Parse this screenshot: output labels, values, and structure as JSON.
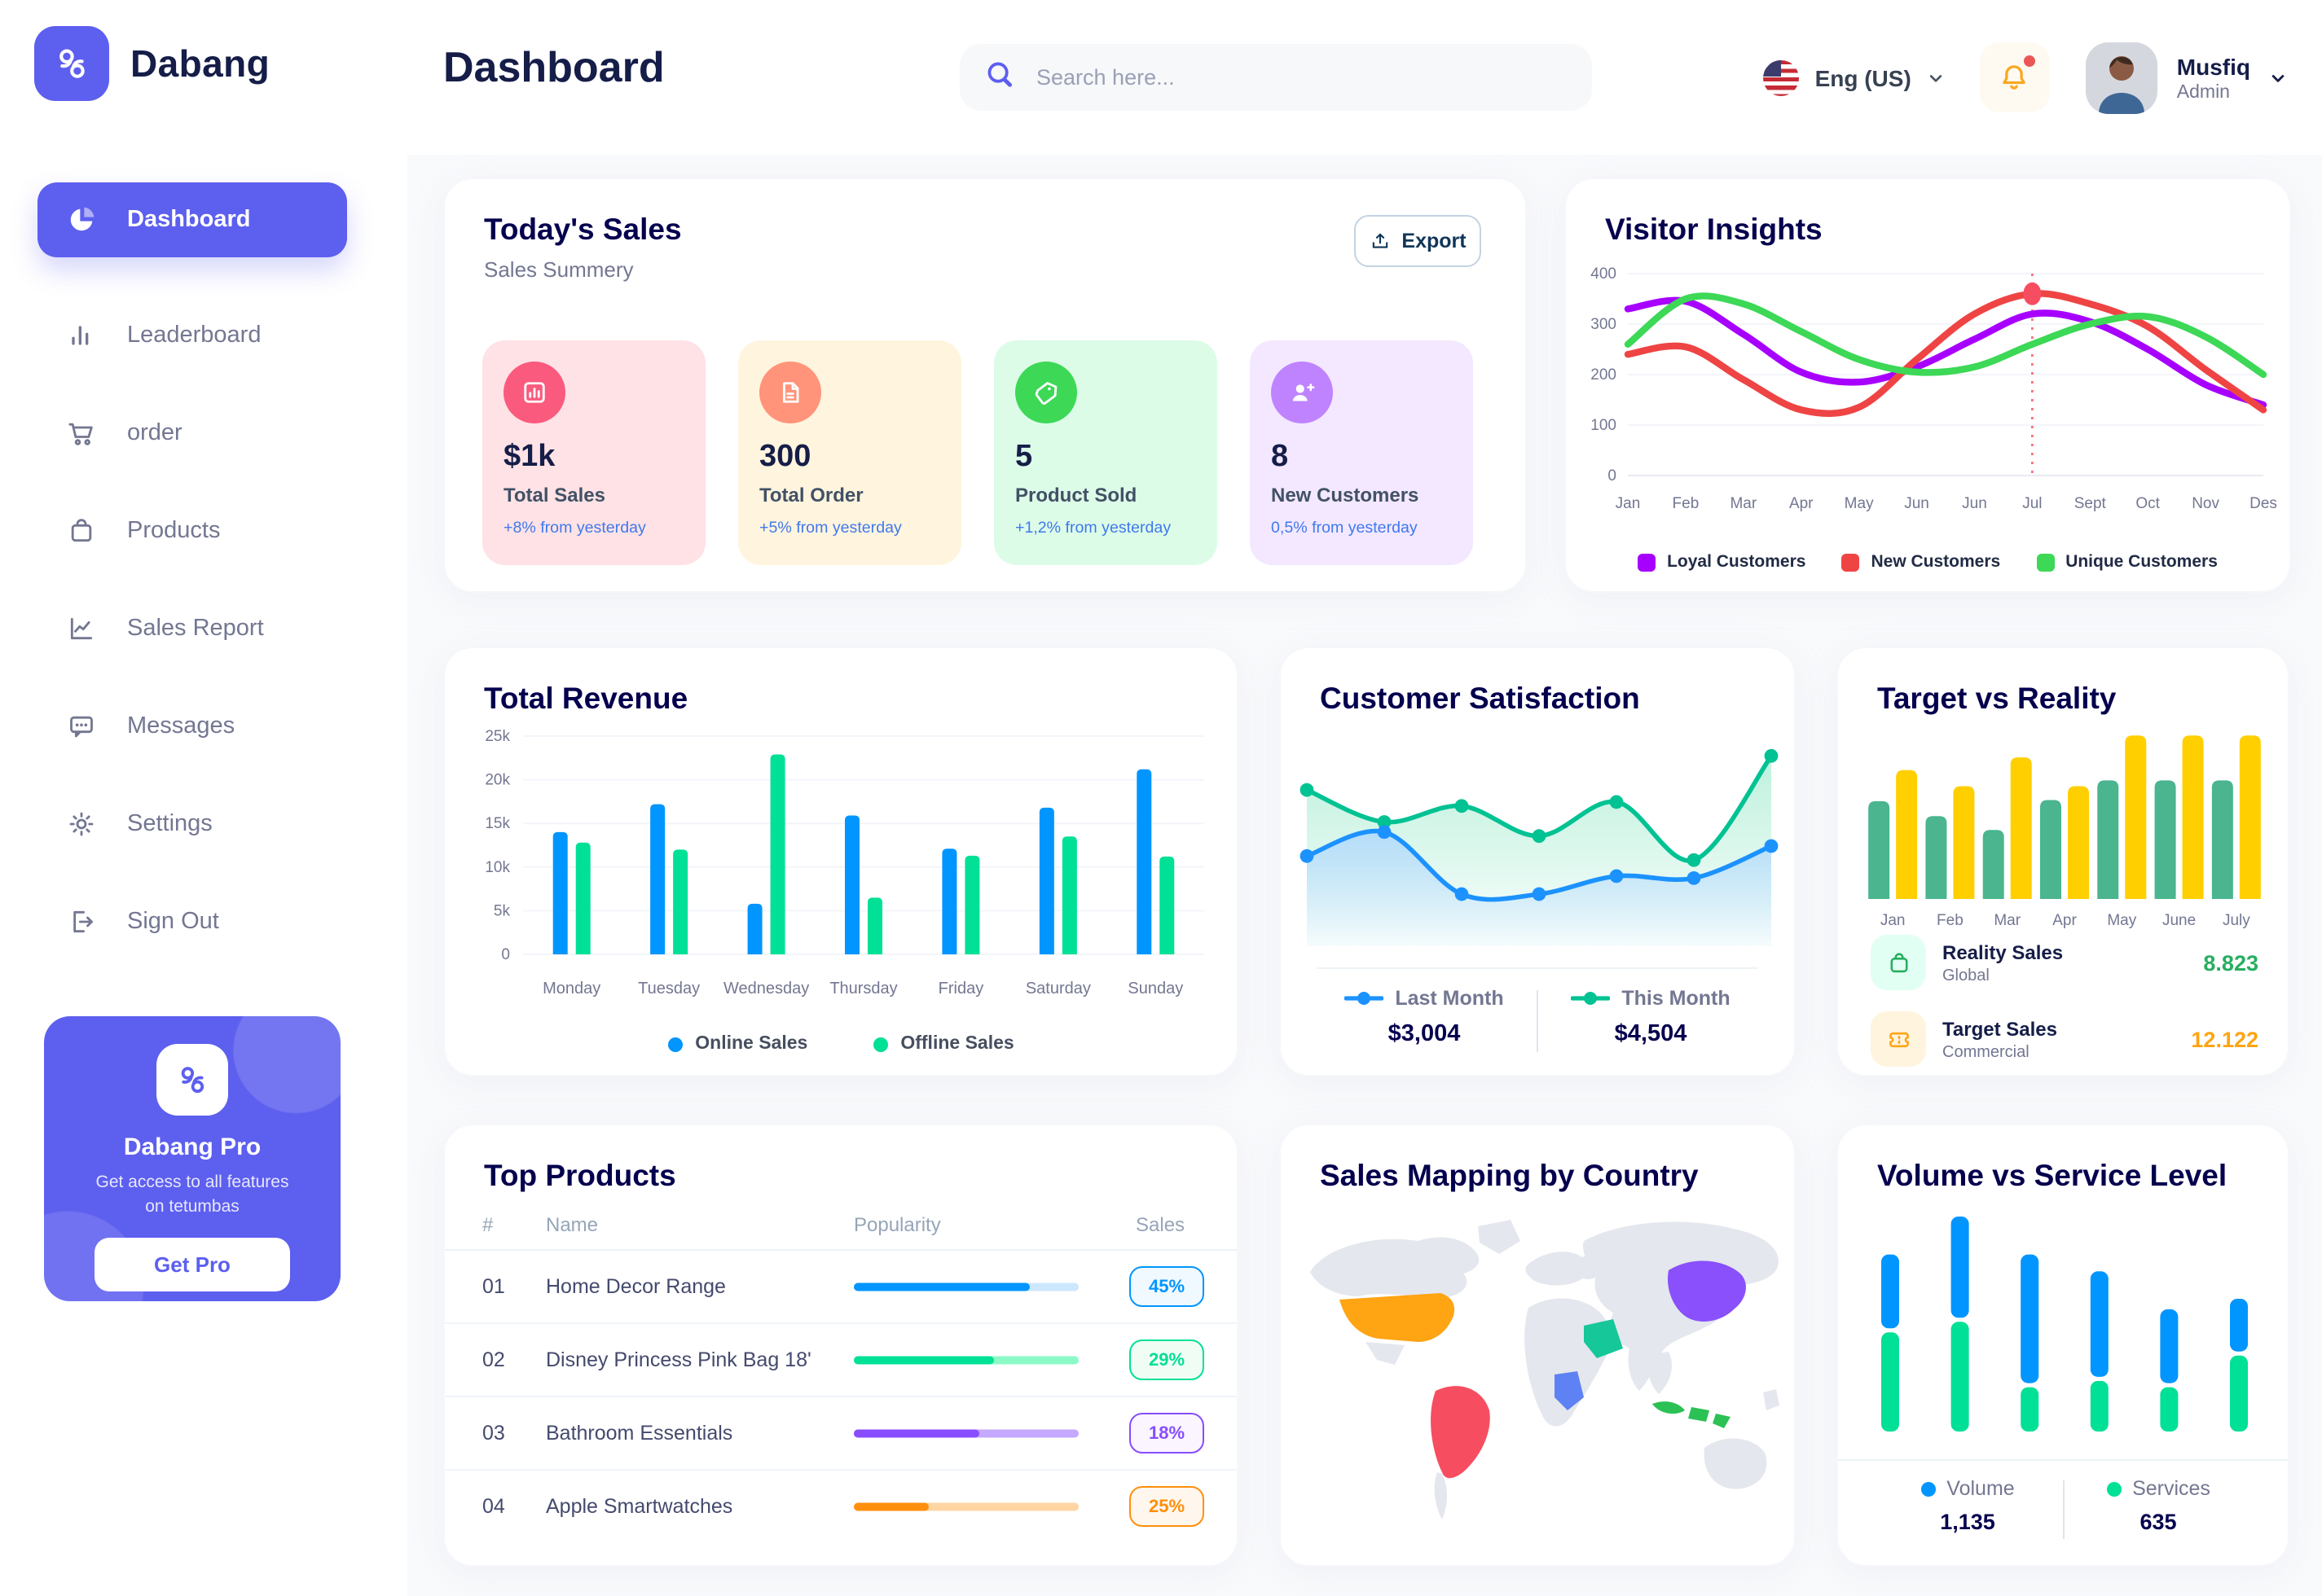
{
  "app": {
    "brand": "Dabang"
  },
  "sidebar": {
    "items": [
      {
        "label": "Dashboard",
        "icon": "pie-chart-icon",
        "active": true
      },
      {
        "label": "Leaderboard",
        "icon": "bar-chart-icon",
        "active": false
      },
      {
        "label": "order",
        "icon": "cart-icon",
        "active": false
      },
      {
        "label": "Products",
        "icon": "bag-icon",
        "active": false
      },
      {
        "label": "Sales Report",
        "icon": "line-chart-icon",
        "active": false
      },
      {
        "label": "Messages",
        "icon": "chat-icon",
        "active": false
      },
      {
        "label": "Settings",
        "icon": "gear-icon",
        "active": false
      },
      {
        "label": "Sign Out",
        "icon": "sign-out-icon",
        "active": false
      }
    ],
    "pro": {
      "title": "Dabang Pro",
      "desc": "Get access to all features on tetumbas",
      "button": "Get Pro"
    }
  },
  "header": {
    "title": "Dashboard",
    "search_placeholder": "Search here...",
    "language": "Eng (US)",
    "user": {
      "name": "Musfiq",
      "role": "Admin"
    }
  },
  "todays_sales": {
    "title": "Today's Sales",
    "subtitle": "Sales Summery",
    "export_label": "Export",
    "cards": [
      {
        "value": "$1k",
        "label": "Total Sales",
        "delta": "+8% from yesterday",
        "bg": "#FFE2E5",
        "icon_bg": "#FA5A7D",
        "icon": "sales-chart-icon"
      },
      {
        "value": "300",
        "label": "Total Order",
        "delta": "+5% from yesterday",
        "bg": "#FFF4DE",
        "icon_bg": "#FF947A",
        "icon": "order-file-icon"
      },
      {
        "value": "5",
        "label": "Product Sold",
        "delta": "+1,2% from yesterday",
        "bg": "#DCFCE7",
        "icon_bg": "#3CD856",
        "icon": "tag-icon"
      },
      {
        "value": "8",
        "label": "New Customers",
        "delta": "0,5% from yesterday",
        "bg": "#F3E8FF",
        "icon_bg": "#BF83FF",
        "icon": "user-plus-icon"
      }
    ]
  },
  "chart_data": [
    {
      "id": "visitor_insights",
      "type": "line",
      "title": "Visitor Insights",
      "x": [
        "Jan",
        "Feb",
        "Mar",
        "Apr",
        "May",
        "Jun",
        "Jun",
        "Jul",
        "Sept",
        "Oct",
        "Nov",
        "Des"
      ],
      "y_ticks": [
        0,
        100,
        200,
        300,
        400
      ],
      "ylim": [
        0,
        400
      ],
      "grid": true,
      "highlight": {
        "index": 7,
        "series": "New Customers",
        "value": 360,
        "color": "#F64E60"
      },
      "series": [
        {
          "name": "Loyal Customers",
          "color": "#A700FF",
          "values": [
            330,
            345,
            280,
            205,
            185,
            215,
            270,
            320,
            305,
            250,
            180,
            140
          ]
        },
        {
          "name": "New Customers",
          "color": "#EF4444",
          "values": [
            240,
            255,
            190,
            130,
            135,
            230,
            320,
            360,
            340,
            295,
            210,
            130
          ]
        },
        {
          "name": "Unique Customers",
          "color": "#3CD856",
          "values": [
            260,
            350,
            340,
            285,
            230,
            205,
            215,
            260,
            300,
            315,
            275,
            200
          ]
        }
      ],
      "legend_position": "bottom"
    },
    {
      "id": "total_revenue",
      "type": "bar",
      "title": "Total Revenue",
      "categories": [
        "Monday",
        "Tuesday",
        "Wednesday",
        "Thursday",
        "Friday",
        "Saturday",
        "Sunday"
      ],
      "y_ticks": [
        "0",
        "5k",
        "10k",
        "15k",
        "20k",
        "25k"
      ],
      "ylim": [
        0,
        25
      ],
      "grid": true,
      "series": [
        {
          "name": "Online Sales",
          "color": "#0095FF",
          "values": [
            14,
            17.2,
            5.8,
            15.9,
            12.1,
            16.8,
            21.2
          ]
        },
        {
          "name": "Offline Sales",
          "color": "#00E096",
          "values": [
            12.8,
            12,
            22.9,
            6.5,
            11.3,
            13.5,
            11.2
          ]
        }
      ],
      "legend_position": "bottom"
    },
    {
      "id": "customer_satisfaction",
      "type": "area",
      "title": "Customer Satisfaction",
      "ylim": [
        0,
        100
      ],
      "grid": false,
      "series": [
        {
          "name": "Last Month",
          "color": "#1C92FF",
          "fill": "#AAD4FF",
          "value_label": "$3,004",
          "values": [
            45,
            57,
            26,
            26,
            35,
            34,
            50
          ]
        },
        {
          "name": "This Month",
          "color": "#00C292",
          "fill": "#A8ECD2",
          "value_label": "$4,504",
          "values": [
            78,
            62,
            70,
            55,
            72,
            43,
            95
          ]
        }
      ],
      "legend_position": "bottom"
    },
    {
      "id": "target_vs_reality",
      "type": "bar",
      "title": "Target vs Reality",
      "categories": [
        "Jan",
        "Feb",
        "Mar",
        "Apr",
        "May",
        "June",
        "July"
      ],
      "ylim": [
        0,
        15
      ],
      "grid": false,
      "series": [
        {
          "name": "Reality Sales",
          "subtitle": "Global",
          "color": "#4AB58E",
          "icon_bg": "#E2FFF3",
          "icon": "shopping-bag-icon",
          "value_label": "8.823",
          "value_color": "#27AE60",
          "values": [
            8.5,
            7.2,
            6,
            8.6,
            10.3,
            10.3,
            10.3
          ]
        },
        {
          "name": "Target Sales",
          "subtitle": "Commercial",
          "color": "#FFCF00",
          "icon_bg": "#FFF4DE",
          "icon": "ticket-icon",
          "value_label": "12.122",
          "value_color": "#FFA412",
          "values": [
            11.2,
            9.8,
            12.3,
            9.8,
            14.2,
            14.2,
            14.2
          ]
        }
      ],
      "legend_position": "bottom-list"
    },
    {
      "id": "top_products",
      "type": "table",
      "title": "Top Products",
      "columns": [
        "#",
        "Name",
        "Popularity",
        "Sales"
      ],
      "rows": [
        {
          "num": "01",
          "name": "Home Decor Range",
          "popularity_pct": 78,
          "sales": "45%",
          "color": "#0095FF",
          "track": "#CDE7FF",
          "badge_bg": "#F0F9FF"
        },
        {
          "num": "02",
          "name": "Disney Princess Pink Bag 18'",
          "popularity_pct": 62,
          "sales": "29%",
          "color": "#00E096",
          "track": "#8CFAC7",
          "badge_bg": "#F0FDF4"
        },
        {
          "num": "03",
          "name": "Bathroom Essentials",
          "popularity_pct": 56,
          "sales": "18%",
          "color": "#884DFF",
          "track": "#C5A8FF",
          "badge_bg": "#FAF5FF"
        },
        {
          "num": "04",
          "name": "Apple Smartwatches",
          "popularity_pct": 33,
          "sales": "25%",
          "color": "#FF8F0D",
          "track": "#FFD5A4",
          "badge_bg": "#FFF7ED"
        }
      ]
    },
    {
      "id": "sales_mapping",
      "type": "map",
      "title": "Sales Mapping by Country",
      "countries": [
        {
          "key": "usa",
          "name": "United States",
          "color": "#FFA412"
        },
        {
          "key": "brazil",
          "name": "Brazil",
          "color": "#F64E60"
        },
        {
          "key": "congo",
          "name": "DR Congo",
          "color": "#5E81F4"
        },
        {
          "key": "saudi",
          "name": "Saudi Arabia",
          "color": "#16C79A"
        },
        {
          "key": "china",
          "name": "China",
          "color": "#8950FC"
        },
        {
          "key": "indonesia",
          "name": "Indonesia",
          "color": "#2BC155"
        }
      ],
      "land_color": "#E4E7ED"
    },
    {
      "id": "volume_service",
      "type": "stacked_bar",
      "title": "Volume vs Service Level",
      "ylim": [
        0,
        1050
      ],
      "grid": false,
      "series": [
        {
          "name": "Volume",
          "color": "#0095FF",
          "total_label": "1,135",
          "values": [
            350,
            480,
            610,
            500,
            350,
            250
          ]
        },
        {
          "name": "Services",
          "color": "#00E096",
          "total_label": "635",
          "values": [
            470,
            520,
            210,
            240,
            210,
            360
          ]
        }
      ],
      "legend_position": "bottom"
    }
  ]
}
